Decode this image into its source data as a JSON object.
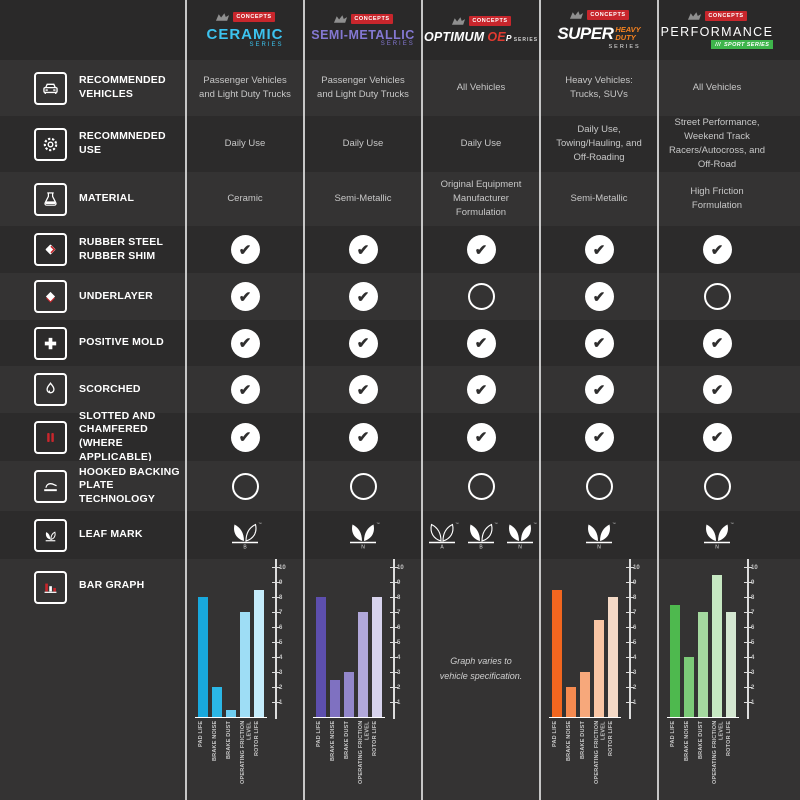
{
  "brand": "CONCEPTS",
  "tm": "™",
  "glyphs": {
    "check": "✔"
  },
  "rows": [
    {
      "label": "RECOMMENDED VEHICLES",
      "icon": "car-icon"
    },
    {
      "label": "RECOMMNEDED USE",
      "icon": "gear-icon"
    },
    {
      "label": "MATERIAL",
      "icon": "flask-icon"
    },
    {
      "label": "RUBBER STEEL RUBBER SHIM",
      "icon": "shim-icon"
    },
    {
      "label": "UNDERLAYER",
      "icon": "underlayer-icon"
    },
    {
      "label": "POSITIVE MOLD",
      "icon": "plus-icon"
    },
    {
      "label": "SCORCHED",
      "icon": "flame-icon"
    },
    {
      "label": "SLOTTED AND CHAMFERED (WHERE APPLICABLE)",
      "icon": "slots-icon"
    },
    {
      "label": "HOOKED BACKING PLATE TECHNOLOGY",
      "icon": "backing-plate-icon"
    },
    {
      "label": "LEAF MARK",
      "icon": "leaf-icon"
    },
    {
      "label": "BAR GRAPH",
      "icon": "bar-chart-icon"
    }
  ],
  "columns": [
    {
      "id": "ceramic",
      "accent": "#3cc3ef",
      "header": {
        "name": "CERAMIC",
        "sub": "SERIES"
      },
      "vehicles": "Passenger Vehicles and Light Duty Trucks",
      "use": "Daily Use",
      "material": "Ceramic",
      "features": {
        "rubber_steel_rubber_shim": true,
        "underlayer": true,
        "positive_mold": true,
        "scorched": true,
        "slotted_and_chamfered": true,
        "hooked_backing_plate": false
      },
      "leaf_marks": [
        {
          "letter": "B",
          "variant": "half"
        }
      ]
    },
    {
      "id": "semi-metallic",
      "accent": "#8478d2",
      "header": {
        "name": "SEMI-METALLIC",
        "sub": "SERIES"
      },
      "vehicles": "Passenger Vehicles and Light Duty Trucks",
      "use": "Daily Use",
      "material": "Semi-Metallic",
      "features": {
        "rubber_steel_rubber_shim": true,
        "underlayer": true,
        "positive_mold": true,
        "scorched": true,
        "slotted_and_chamfered": true,
        "hooked_backing_plate": false
      },
      "leaf_marks": [
        {
          "letter": "N",
          "variant": "filled"
        }
      ]
    },
    {
      "id": "optimum-oep",
      "accent": "#e03a30",
      "header": {
        "name": "OPTIMUM",
        "accent": "OE",
        "suffix": "P",
        "sub": "SERIES"
      },
      "vehicles": "All Vehicles",
      "use": "Daily Use",
      "material": "Original Equipment Manufacturer Formulation",
      "features": {
        "rubber_steel_rubber_shim": true,
        "underlayer": false,
        "positive_mold": true,
        "scorched": true,
        "slotted_and_chamfered": true,
        "hooked_backing_plate": false
      },
      "leaf_marks": [
        {
          "letter": "A",
          "variant": "outline"
        },
        {
          "letter": "B",
          "variant": "half"
        },
        {
          "letter": "N",
          "variant": "filled"
        }
      ],
      "chart_note": "Graph varies to vehicle specification."
    },
    {
      "id": "super-heavy-duty",
      "accent": "#f58220",
      "header": {
        "name": "SUPER",
        "accent1": "HEAVY",
        "accent2": "DUTY",
        "sub": "SERIES"
      },
      "vehicles": "Heavy Vehicles: Trucks, SUVs",
      "use": "Daily Use, Towing/Hauling, and Off-Roading",
      "material": "Semi-Metallic",
      "features": {
        "rubber_steel_rubber_shim": true,
        "underlayer": true,
        "positive_mold": true,
        "scorched": true,
        "slotted_and_chamfered": true,
        "hooked_backing_plate": false
      },
      "leaf_marks": [
        {
          "letter": "N",
          "variant": "filled"
        }
      ]
    },
    {
      "id": "performance",
      "accent": "#3eb54b",
      "header": {
        "name": "PERFORMANCE",
        "badge_prefix": "///",
        "badge": "SPORT SERIES"
      },
      "vehicles": "All Vehicles",
      "use": "Street Performance, Weekend Track Racers/Autocross, and Off-Road",
      "material": "High Friction Formulation",
      "features": {
        "rubber_steel_rubber_shim": true,
        "underlayer": false,
        "positive_mold": true,
        "scorched": true,
        "slotted_and_chamfered": true,
        "hooked_backing_plate": false
      },
      "leaf_marks": [
        {
          "letter": "N",
          "variant": "filled"
        }
      ]
    }
  ],
  "chart_data": [
    {
      "type": "bar",
      "series_name": "Ceramic Series",
      "categories": [
        "PAD LIFE",
        "BRAKE NOISE",
        "BRAKE DUST",
        "OPERATING FRICTION LEVEL",
        "ROTOR LIFE"
      ],
      "values": [
        8,
        2,
        0.5,
        7,
        8.5
      ],
      "ylim": [
        0,
        10
      ],
      "yticks": [
        1,
        2,
        3,
        4,
        5,
        6,
        7,
        8,
        9,
        10
      ],
      "bar_colors": [
        "#18a8dc",
        "#2bb7e6",
        "#6fcdf0",
        "#9eddf5",
        "#c5ecfb"
      ],
      "grid": false,
      "legend": false
    },
    {
      "type": "bar",
      "series_name": "Semi-Metallic Series",
      "categories": [
        "PAD LIFE",
        "BRAKE NOISE",
        "BRAKE DUST",
        "OPERATING FRICTION LEVEL",
        "ROTOR LIFE"
      ],
      "values": [
        8,
        2.5,
        3,
        7,
        8
      ],
      "ylim": [
        0,
        10
      ],
      "yticks": [
        1,
        2,
        3,
        4,
        5,
        6,
        7,
        8,
        9,
        10
      ],
      "bar_colors": [
        "#5d4fae",
        "#7f71c1",
        "#9387cb",
        "#b1a8da",
        "#d7d3ed"
      ],
      "grid": false,
      "legend": false
    },
    {
      "type": "none",
      "series_name": "Optimum OEp Series",
      "note": "Graph varies to vehicle specification."
    },
    {
      "type": "bar",
      "series_name": "Super Heavy Duty Series",
      "categories": [
        "PAD LIFE",
        "BRAKE NOISE",
        "BRAKE DUST",
        "OPERATING FRICTION LEVEL",
        "ROTOR LIFE"
      ],
      "values": [
        8.5,
        2,
        3,
        6.5,
        8
      ],
      "ylim": [
        0,
        10
      ],
      "yticks": [
        1,
        2,
        3,
        4,
        5,
        6,
        7,
        8,
        9,
        10
      ],
      "bar_colors": [
        "#f2661f",
        "#f58a50",
        "#f7a87b",
        "#f9c5a4",
        "#f4d9c6"
      ],
      "grid": false,
      "legend": false
    },
    {
      "type": "bar",
      "series_name": "Performance Sport Series",
      "categories": [
        "PAD LIFE",
        "BRAKE NOISE",
        "BRAKE DUST",
        "OPERATING FRICTION LEVEL",
        "ROTOR LIFE"
      ],
      "values": [
        7.5,
        4,
        7,
        9.5,
        7
      ],
      "ylim": [
        0,
        10
      ],
      "yticks": [
        1,
        2,
        3,
        4,
        5,
        6,
        7,
        8,
        9,
        10
      ],
      "bar_colors": [
        "#4eb94e",
        "#7cca78",
        "#a5d9a0",
        "#c6e8c2",
        "#d4e7d1"
      ],
      "grid": false,
      "legend": false
    }
  ]
}
